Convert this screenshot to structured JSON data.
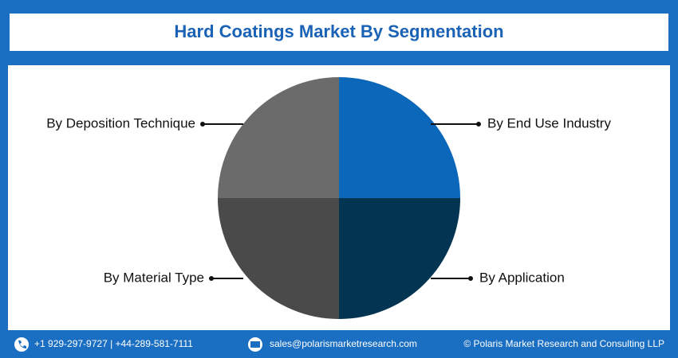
{
  "chart_data": {
    "type": "pie",
    "title": "Hard Coatings Market By Segmentation",
    "categories": [
      "By End Use Industry",
      "By Application",
      "By Material Type",
      "By Deposition Technique"
    ],
    "values": [
      25,
      25,
      25,
      25
    ],
    "colors": [
      "#0b67b9",
      "#033452",
      "#4a4a4a",
      "#6b6b6b"
    ]
  },
  "footer": {
    "phone": "+1 929-297-9727 | +44-289-581-7111",
    "email": "sales@polarismarketresearch.com",
    "copyright": "© Polaris Market Research and Consulting LLP"
  }
}
